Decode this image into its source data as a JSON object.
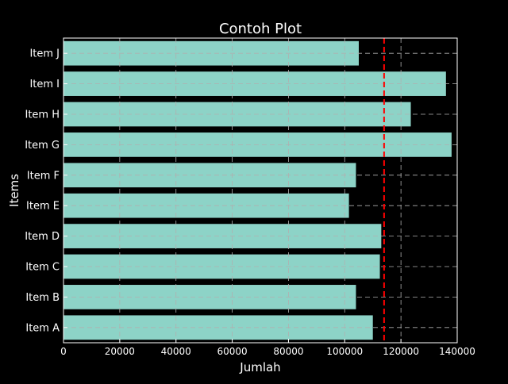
{
  "chart_data": {
    "type": "bar",
    "orientation": "horizontal",
    "title": "Contoh Plot",
    "xlabel": "Jumlah",
    "ylabel": "Items",
    "categories": [
      "Item A",
      "Item B",
      "Item C",
      "Item D",
      "Item E",
      "Item F",
      "Item G",
      "Item H",
      "Item I",
      "Item J"
    ],
    "values": [
      110000,
      104000,
      112500,
      113000,
      101500,
      104000,
      138000,
      123500,
      136000,
      105000
    ],
    "xlim": [
      0,
      140000
    ],
    "xticks": [
      0,
      20000,
      40000,
      60000,
      80000,
      100000,
      120000,
      140000
    ],
    "reference_line": {
      "value": 114000,
      "style": "dashed",
      "color": "#ff0000"
    },
    "grid": true,
    "colors": {
      "background": "#000000",
      "bar": "#8dd3c7",
      "text": "#ffffff",
      "grid": "#b0b0b0",
      "reference": "#ff0000"
    }
  }
}
